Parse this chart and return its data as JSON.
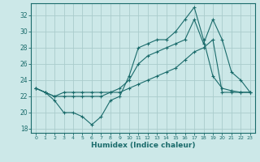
{
  "xlabel": "Humidex (Indice chaleur)",
  "bg_color": "#cce8e8",
  "grid_color": "#aacccc",
  "line_color": "#1a6b6b",
  "xlim": [
    -0.5,
    23.5
  ],
  "ylim": [
    17.5,
    33.5
  ],
  "yticks": [
    18,
    20,
    22,
    24,
    26,
    28,
    30,
    32
  ],
  "xticks": [
    0,
    1,
    2,
    3,
    4,
    5,
    6,
    7,
    8,
    9,
    10,
    11,
    12,
    13,
    14,
    15,
    16,
    17,
    18,
    19,
    20,
    21,
    22,
    23
  ],
  "series": [
    {
      "x": [
        0,
        1,
        2,
        3,
        4,
        5,
        6,
        7,
        8,
        9,
        10,
        11,
        12,
        13,
        14,
        15,
        16,
        17,
        18,
        19,
        20,
        21,
        22,
        23
      ],
      "y": [
        23,
        22.5,
        21.5,
        20,
        20,
        19.5,
        18.5,
        19.5,
        21.5,
        22,
        24.5,
        28,
        28.5,
        29,
        29,
        30,
        31.5,
        33,
        29,
        24.5,
        23,
        22.7,
        22.5,
        22.5
      ]
    },
    {
      "x": [
        0,
        1,
        2,
        3,
        4,
        5,
        6,
        7,
        8,
        9,
        10,
        11,
        12,
        13,
        14,
        15,
        16,
        17,
        18,
        19,
        20,
        21,
        22,
        23
      ],
      "y": [
        23,
        22.5,
        22,
        22,
        22,
        22,
        22,
        22,
        22.5,
        23,
        24,
        26,
        27,
        27.5,
        28,
        28.5,
        29,
        31.5,
        28.5,
        31.5,
        29,
        25,
        24,
        22.5
      ]
    },
    {
      "x": [
        0,
        1,
        2,
        3,
        4,
        5,
        6,
        7,
        8,
        9,
        10,
        11,
        12,
        13,
        14,
        15,
        16,
        17,
        18,
        19,
        20,
        21,
        22,
        23
      ],
      "y": [
        23,
        22.5,
        22,
        22.5,
        22.5,
        22.5,
        22.5,
        22.5,
        22.5,
        22.5,
        23,
        23.5,
        24,
        24.5,
        25,
        25.5,
        26.5,
        27.5,
        28,
        29,
        22.5,
        22.5,
        22.5,
        22.5
      ]
    }
  ]
}
